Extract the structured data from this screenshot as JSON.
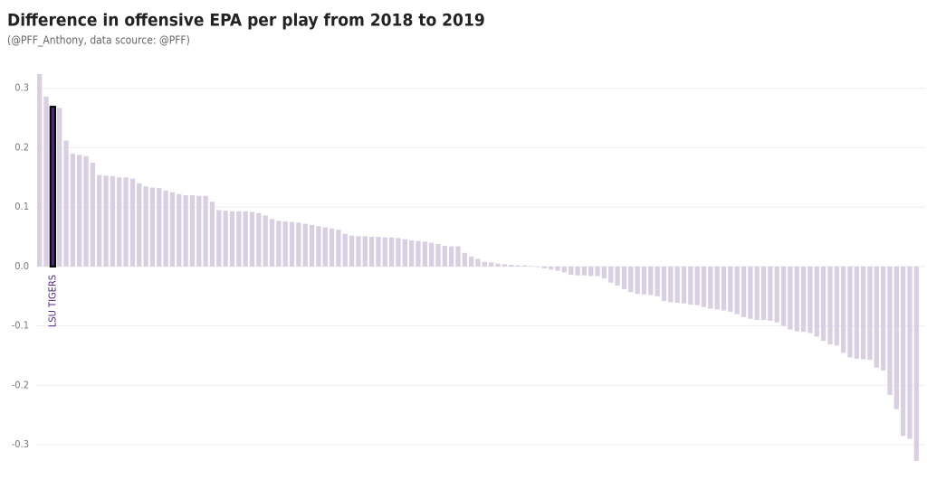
{
  "chart_data": {
    "type": "bar",
    "title": "Difference in offensive EPA per play from 2018 to 2019",
    "subtitle": "(@PFF_Anthony, data scource: @PFF)",
    "categories": [
      null,
      null,
      "LSU TIGERS",
      null,
      null,
      null,
      null,
      null,
      null,
      null,
      null,
      null,
      null,
      null,
      null,
      null,
      null,
      null,
      null,
      null,
      null,
      null,
      null,
      null,
      null,
      null,
      null,
      null,
      null,
      null,
      null,
      null,
      null,
      null,
      null,
      null,
      null,
      null,
      null,
      null,
      null,
      null,
      null,
      null,
      null,
      null,
      null,
      null,
      null,
      null,
      null,
      null,
      null,
      null,
      null,
      null,
      null,
      null,
      null,
      null,
      null,
      null,
      null,
      null,
      null,
      null,
      null,
      null,
      null,
      null,
      null,
      null,
      null,
      null,
      null,
      null,
      null,
      null,
      null,
      null,
      null,
      null,
      null,
      null,
      null,
      null,
      null,
      null,
      null,
      null,
      null,
      null,
      null,
      null,
      null,
      null,
      null,
      null,
      null,
      null,
      null,
      null,
      null,
      null,
      null,
      null,
      null,
      null,
      null,
      null,
      null,
      null,
      null,
      null,
      null,
      null,
      null,
      null,
      null,
      null,
      null,
      null,
      null,
      null,
      null,
      null,
      null,
      null,
      null,
      null,
      null,
      null,
      null
    ],
    "values": [
      0.324,
      0.286,
      0.269,
      0.267,
      0.212,
      0.19,
      0.188,
      0.186,
      0.175,
      0.154,
      0.153,
      0.152,
      0.15,
      0.15,
      0.148,
      0.14,
      0.135,
      0.133,
      0.132,
      0.128,
      0.125,
      0.122,
      0.12,
      0.12,
      0.119,
      0.119,
      0.109,
      0.095,
      0.094,
      0.093,
      0.093,
      0.093,
      0.092,
      0.09,
      0.086,
      0.08,
      0.077,
      0.076,
      0.075,
      0.074,
      0.072,
      0.07,
      0.068,
      0.066,
      0.064,
      0.062,
      0.055,
      0.052,
      0.051,
      0.051,
      0.05,
      0.05,
      0.049,
      0.049,
      0.048,
      0.046,
      0.044,
      0.043,
      0.042,
      0.04,
      0.038,
      0.035,
      0.034,
      0.034,
      0.023,
      0.017,
      0.013,
      0.008,
      0.007,
      0.005,
      0.004,
      0.003,
      0.002,
      0.002,
      0.001,
      -0.001,
      -0.003,
      -0.005,
      -0.007,
      -0.01,
      -0.014,
      -0.015,
      -0.015,
      -0.016,
      -0.016,
      -0.02,
      -0.027,
      -0.032,
      -0.038,
      -0.043,
      -0.046,
      -0.047,
      -0.048,
      -0.05,
      -0.058,
      -0.06,
      -0.061,
      -0.062,
      -0.064,
      -0.065,
      -0.068,
      -0.071,
      -0.072,
      -0.074,
      -0.076,
      -0.08,
      -0.085,
      -0.088,
      -0.09,
      -0.09,
      -0.091,
      -0.094,
      -0.1,
      -0.106,
      -0.109,
      -0.11,
      -0.112,
      -0.118,
      -0.125,
      -0.131,
      -0.133,
      -0.145,
      -0.153,
      -0.155,
      -0.156,
      -0.157,
      -0.17,
      -0.175,
      -0.216,
      -0.24,
      -0.285,
      -0.29,
      -0.327
    ],
    "color": "#d8cfe2",
    "highlight_color": "#4f2683",
    "ylim": [
      -0.35,
      0.33
    ],
    "yticks": [
      -0.3,
      -0.2,
      -0.1,
      {
        "value": 0,
        "label": "0.0"
      },
      0.1,
      0.2,
      0.3
    ],
    "grid": true
  }
}
